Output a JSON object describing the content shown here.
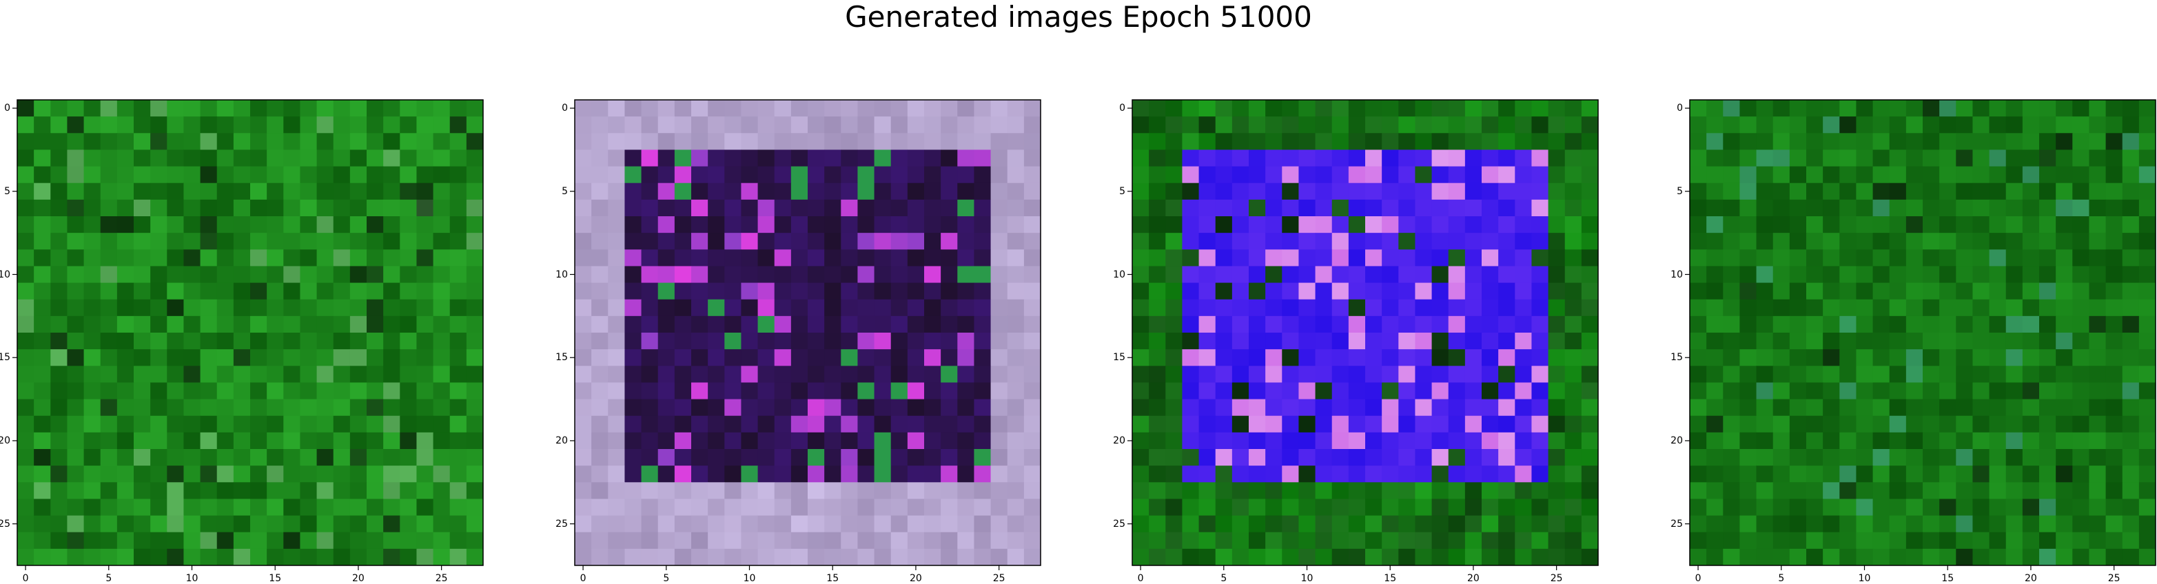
{
  "figure": {
    "title": "Generated images Epoch 51000"
  },
  "chart_data": {
    "type": "heatmap",
    "suptitle": "Generated images Epoch 51000",
    "panels": [
      {
        "name": "",
        "xticks": [
          0,
          5,
          10,
          15,
          20,
          25
        ],
        "yticks": [
          0,
          5,
          10,
          15,
          20,
          25
        ],
        "xlim": [
          -0.5,
          27.5
        ],
        "ylim": [
          27.5,
          -0.5
        ],
        "palette": {
          "base": "#137f13",
          "a": "#0c5e0c",
          "b": "#2aa82a",
          "accent": "#6db86d"
        }
      },
      {
        "name": "",
        "xticks": [
          0,
          5,
          10,
          15,
          20,
          25
        ],
        "yticks": [
          0,
          5,
          10,
          15,
          20,
          25
        ],
        "xlim": [
          -0.5,
          27.5
        ],
        "ylim": [
          27.5,
          -0.5
        ],
        "palette": {
          "base": "#9f8fb8",
          "a": "#20102e",
          "b": "#c8b9e2",
          "accent": "#8c3fc7"
        }
      },
      {
        "name": "",
        "xticks": [
          0,
          5,
          10,
          15,
          20,
          25
        ],
        "yticks": [
          0,
          5,
          10,
          15,
          20,
          25
        ],
        "xlim": [
          -0.5,
          27.5
        ],
        "ylim": [
          27.5,
          -0.5
        ],
        "palette": {
          "base": "#1f6a1f",
          "a": "#2a10e8",
          "b": "#5a2af0",
          "accent": "#d170e8"
        }
      },
      {
        "name": "",
        "xticks": [
          0,
          5,
          10,
          15,
          20,
          25
        ],
        "yticks": [
          0,
          5,
          10,
          15,
          20,
          25
        ],
        "xlim": [
          -0.5,
          27.5
        ],
        "ylim": [
          27.5,
          -0.5
        ],
        "palette": {
          "base": "#0f780f",
          "a": "#0a540a",
          "b": "#1f941f",
          "accent": "#3f9f7a"
        }
      }
    ],
    "grid": false,
    "legend": "none"
  }
}
